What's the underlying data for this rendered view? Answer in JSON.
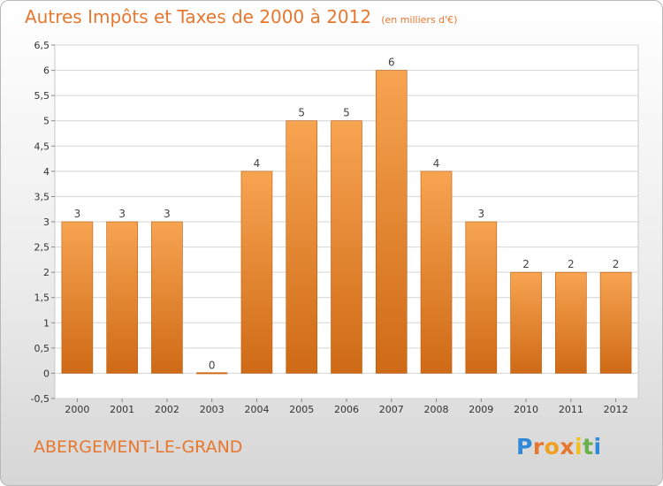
{
  "header": {
    "title": "Autres Impôts et Taxes de 2000 à 2012",
    "unit": "(en milliers d'€)"
  },
  "footer": {
    "commune": "ABERGEMENT-LE-GRAND",
    "logo_text": "Proxiti",
    "logo_colors": [
      "#2f8ad8",
      "#e8772e",
      "#f0a020",
      "#e8772e",
      "#f0c020",
      "#6ab04c",
      "#2f8ad8"
    ]
  },
  "colors": {
    "bar_light": "#f7a451",
    "bar_dark": "#cf6a16",
    "bar_edge": "#b85a10",
    "title": "#e8772e",
    "grid": "#d4d4d4"
  },
  "chart_data": {
    "type": "bar",
    "title": "Autres Impôts et Taxes de 2000 à 2012",
    "subtitle": "(en milliers d'€)",
    "xlabel": "",
    "ylabel": "",
    "categories": [
      "2000",
      "2001",
      "2002",
      "2003",
      "2004",
      "2005",
      "2006",
      "2007",
      "2008",
      "2009",
      "2010",
      "2011",
      "2012"
    ],
    "values": [
      3,
      3,
      3,
      0,
      4,
      5,
      5,
      6,
      4,
      3,
      2,
      2,
      2
    ],
    "data_labels": [
      "3",
      "3",
      "3",
      "0",
      "4",
      "5",
      "5",
      "6",
      "4",
      "3",
      "2",
      "2",
      "2"
    ],
    "ylim": [
      -0.5,
      6.5
    ],
    "yticks": [
      -0.5,
      0,
      0.5,
      1,
      1.5,
      2,
      2.5,
      3,
      3.5,
      4,
      4.5,
      5,
      5.5,
      6,
      6.5
    ],
    "ytick_labels": [
      "-0,5",
      "0",
      "0,5",
      "1",
      "1,5",
      "2",
      "2,5",
      "3",
      "3,5",
      "4",
      "4,5",
      "5",
      "5,5",
      "6",
      "6,5"
    ],
    "grid": true,
    "legend": "none"
  }
}
